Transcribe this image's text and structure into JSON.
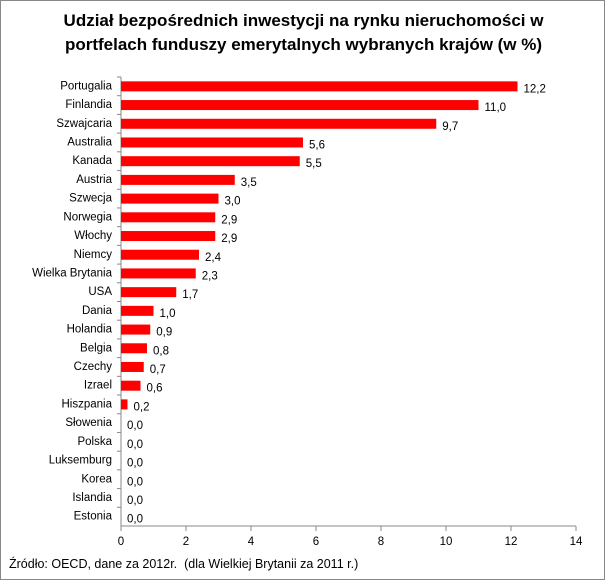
{
  "chart_data": {
    "type": "bar",
    "orientation": "horizontal",
    "title": "Udział bezpośrednich inwestycji na rynku nieruchomości w portfelach funduszy emerytalnych wybranych krajów (w %)",
    "categories": [
      "Portugalia",
      "Finlandia",
      "Szwajcaria",
      "Australia",
      "Kanada",
      "Austria",
      "Szwecja",
      "Norwegia",
      "Włochy",
      "Niemcy",
      "Wielka Brytania",
      "USA",
      "Dania",
      "Holandia",
      "Belgia",
      "Czechy",
      "Izrael",
      "Hiszpania",
      "Słowenia",
      "Polska",
      "Luksemburg",
      "Korea",
      "Islandia",
      "Estonia"
    ],
    "values": [
      12.2,
      11.0,
      9.7,
      5.6,
      5.5,
      3.5,
      3.0,
      2.9,
      2.9,
      2.4,
      2.3,
      1.7,
      1.0,
      0.9,
      0.8,
      0.7,
      0.6,
      0.2,
      0.0,
      0.0,
      0.0,
      0.0,
      0.0,
      0.0
    ],
    "value_labels": [
      "12,2",
      "11,0",
      "9,7",
      "5,6",
      "5,5",
      "3,5",
      "3,0",
      "2,9",
      "2,9",
      "2,4",
      "2,3",
      "1,7",
      "1,0",
      "0,9",
      "0,8",
      "0,7",
      "0,6",
      "0,2",
      "0,0",
      "0,0",
      "0,0",
      "0,0",
      "0,0",
      "0,0"
    ],
    "color": "#ff0000",
    "xlim": [
      0,
      14
    ],
    "xticks": [
      0,
      2,
      4,
      6,
      8,
      10,
      12,
      14
    ],
    "source": "Źródło: OECD, dane za 2012r.  (dla Wielkiej Brytanii za 2011 r.)"
  }
}
